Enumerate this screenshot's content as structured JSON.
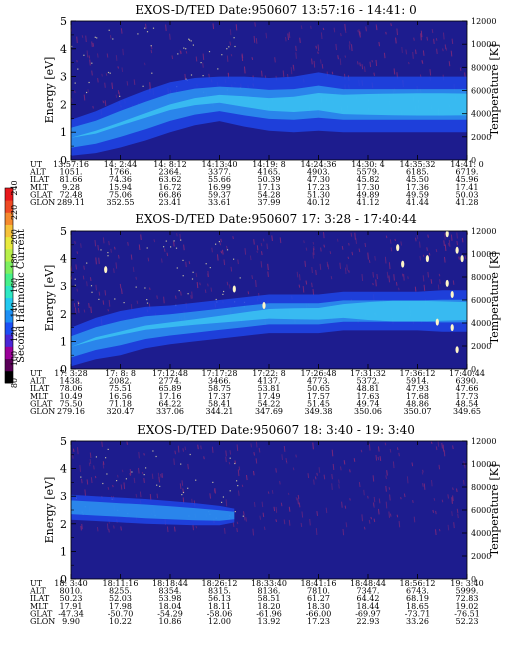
{
  "figure": {
    "colorbar": {
      "label": "Second Harmonic Current",
      "ticks": [
        "80",
        "100",
        "120",
        "140",
        "160",
        "180",
        "200",
        "220",
        "240"
      ],
      "colors": [
        "#000000",
        "#5a0058",
        "#9a0098",
        "#4a26d6",
        "#1c4ff5",
        "#1d8ff5",
        "#22c9f0",
        "#2ee8c4",
        "#46f08a",
        "#7ef060",
        "#b8f04a",
        "#e8ea3e",
        "#f6c23a",
        "#f58a2e",
        "#ef4a24",
        "#e8181c"
      ]
    },
    "colors": {
      "background": "#1d1c8e",
      "band_mid": "#1f45e8",
      "band_light": "#2f9ef0",
      "band_core": "#41d7f4",
      "noise": "#8b2a77",
      "speck": "#f3e8a8"
    }
  },
  "chart_data": [
    {
      "type": "heatmap",
      "title": "EXOS-D/TED   Date:950607  13:57:16 - 14:41: 0",
      "ylabel": "Energy [eV]",
      "y2label": "Temperature [K]",
      "ylim": [
        0,
        5
      ],
      "y2lim": [
        0,
        12000
      ],
      "yticks": [
        "0",
        "1",
        "2",
        "3",
        "4",
        "5"
      ],
      "y2ticks": [
        "0",
        "2000",
        "4000",
        "6000",
        "8000",
        "10000",
        "12000"
      ],
      "ephemeris_labels": [
        "UT",
        "ALT",
        "ILAT",
        "MLT",
        "GLAT",
        "GLON"
      ],
      "ephemeris": [
        [
          "13:57:16",
          "1051.",
          "81.66",
          "9.28",
          "72.48",
          "289.11"
        ],
        [
          "14: 2:44",
          "1766.",
          "74.36",
          "15.94",
          "75.06",
          "352.55"
        ],
        [
          "14: 8:12",
          "2364.",
          "63.62",
          "16.72",
          "66.86",
          "23.41"
        ],
        [
          "14:13:40",
          "3377.",
          "55.66",
          "16.99",
          "59.37",
          "33.61"
        ],
        [
          "14:19: 8",
          "4165.",
          "50.39",
          "17.13",
          "54.28",
          "37.99"
        ],
        [
          "14:24:36",
          "4903.",
          "47.30",
          "17.23",
          "51.30",
          "40.12"
        ],
        [
          "14:30: 4",
          "5579.",
          "45.82",
          "17.30",
          "49.89",
          "41.12"
        ],
        [
          "14:35:32",
          "6185.",
          "45.50",
          "17.36",
          "49.59",
          "41.44"
        ],
        [
          "14:41: 0",
          "6719.",
          "45.96",
          "17.41",
          "50.03",
          "41.28"
        ]
      ],
      "band": [
        [
          0,
          0.8,
          1.3,
          0.0
        ],
        [
          0.5,
          1.0,
          1.5,
          0.1
        ],
        [
          1.0,
          1.3,
          1.7,
          0.12
        ],
        [
          1.5,
          1.6,
          1.8,
          0.16
        ],
        [
          2.0,
          1.9,
          1.8,
          0.2
        ],
        [
          2.5,
          2.1,
          1.7,
          0.25
        ],
        [
          3.0,
          2.2,
          1.6,
          0.28
        ],
        [
          3.5,
          2.1,
          1.8,
          0.38
        ],
        [
          4.0,
          2.0,
          1.9,
          0.45
        ],
        [
          4.5,
          2.0,
          2.0,
          0.55
        ],
        [
          5.0,
          2.1,
          2.1,
          0.62
        ],
        [
          5.5,
          2.0,
          2.0,
          0.7
        ],
        [
          6.0,
          2.0,
          2.0,
          0.75
        ],
        [
          6.5,
          2.0,
          2.0,
          0.78
        ],
        [
          7.0,
          2.0,
          2.0,
          0.8
        ],
        [
          7.5,
          2.0,
          2.0,
          0.8
        ],
        [
          8.0,
          2.0,
          2.0,
          0.78
        ]
      ]
    },
    {
      "type": "heatmap",
      "title": "EXOS-D/TED   Date:950607  17: 3:28 - 17:40:44",
      "ylabel": "Energy [eV]",
      "y2label": "Temperature [K]",
      "ylim": [
        0,
        5
      ],
      "y2lim": [
        0,
        12000
      ],
      "yticks": [
        "0",
        "1",
        "2",
        "3",
        "4",
        "5"
      ],
      "y2ticks": [
        "0",
        "2000",
        "4000",
        "6000",
        "8000",
        "10000",
        "12000"
      ],
      "ephemeris_labels": [
        "UT",
        "ALT",
        "ILAT",
        "MLT",
        "GLAT",
        "GLON"
      ],
      "ephemeris": [
        [
          "17: 3:28",
          "1438.",
          "78.06",
          "10.49",
          "75.50",
          "279.16"
        ],
        [
          "17: 8: 8",
          "2082.",
          "75.51",
          "16.56",
          "71.18",
          "320.47"
        ],
        [
          "17:12:48",
          "2774.",
          "65.89",
          "17.16",
          "64.22",
          "337.06"
        ],
        [
          "17:17:28",
          "3466.",
          "58.75",
          "17.37",
          "58.41",
          "344.21"
        ],
        [
          "17:22: 8",
          "4137.",
          "53.81",
          "17.49",
          "54.22",
          "347.69"
        ],
        [
          "17:26:48",
          "4773.",
          "50.65",
          "17.57",
          "51.45",
          "349.38"
        ],
        [
          "17:31:32",
          "5372.",
          "48.81",
          "17.63",
          "49.74",
          "350.06"
        ],
        [
          "17:36:12",
          "5914.",
          "47.93",
          "17.68",
          "48.86",
          "350.07"
        ],
        [
          "17:40:44",
          "6390.",
          "47.66",
          "17.73",
          "48.54",
          "349.65"
        ]
      ],
      "band": [
        [
          0,
          0.8,
          1.4,
          0.0
        ],
        [
          0.5,
          1.1,
          1.5,
          0.1
        ],
        [
          1.0,
          1.3,
          1.6,
          0.12
        ],
        [
          1.5,
          1.5,
          1.5,
          0.15
        ],
        [
          2.0,
          1.6,
          1.4,
          0.18
        ],
        [
          2.5,
          1.7,
          1.4,
          0.2
        ],
        [
          3.0,
          1.8,
          1.4,
          0.25
        ],
        [
          3.5,
          1.9,
          1.4,
          0.3
        ],
        [
          4.0,
          2.0,
          1.4,
          0.35
        ],
        [
          4.5,
          2.0,
          1.4,
          0.4
        ],
        [
          5.0,
          2.0,
          1.4,
          0.42
        ],
        [
          5.5,
          2.1,
          1.4,
          0.5
        ],
        [
          6.0,
          2.1,
          1.4,
          0.65
        ],
        [
          6.5,
          2.1,
          1.4,
          0.75
        ],
        [
          7.0,
          2.1,
          1.4,
          0.75
        ],
        [
          7.5,
          2.1,
          1.5,
          0.7
        ],
        [
          8.0,
          2.1,
          1.5,
          0.65
        ]
      ],
      "specks": [
        [
          0.7,
          3.6
        ],
        [
          3.3,
          2.9
        ],
        [
          3.9,
          2.3
        ],
        [
          6.6,
          4.4
        ],
        [
          6.7,
          3.8
        ],
        [
          7.2,
          4.0
        ],
        [
          7.4,
          1.7
        ],
        [
          7.6,
          4.9
        ],
        [
          7.6,
          3.1
        ],
        [
          7.7,
          2.7
        ],
        [
          7.8,
          4.3
        ],
        [
          7.7,
          1.5
        ],
        [
          7.8,
          0.7
        ],
        [
          7.9,
          4.0
        ]
      ]
    },
    {
      "type": "heatmap",
      "title": "EXOS-D/TED   Date:950607  18: 3:40 - 19: 3:40",
      "ylabel": "Energy [eV]",
      "y2label": "Temperature [K]",
      "ylim": [
        0,
        5
      ],
      "y2lim": [
        0,
        12000
      ],
      "yticks": [
        "0",
        "1",
        "2",
        "3",
        "4",
        "5"
      ],
      "y2ticks": [
        "0",
        "2000",
        "4000",
        "6000",
        "8000",
        "10000",
        "12000"
      ],
      "ephemeris_labels": [
        "UT",
        "ALT",
        "ILAT",
        "MLT",
        "GLAT",
        "GLON"
      ],
      "ephemeris": [
        [
          "18: 3:40",
          "8010.",
          "50.23",
          "17.91",
          "-47.34",
          "9.90"
        ],
        [
          "18:11:16",
          "8255.",
          "52.03",
          "17.98",
          "-50.70",
          "10.22"
        ],
        [
          "18:18:44",
          "8354.",
          "53.98",
          "18.04",
          "-54.29",
          "10.86"
        ],
        [
          "18:26:12",
          "8315.",
          "56.13",
          "18.11",
          "-58.06",
          "12.00"
        ],
        [
          "18:33:40",
          "8136.",
          "58.51",
          "18.20",
          "-61.96",
          "13.92"
        ],
        [
          "18:41:16",
          "7810.",
          "61.27",
          "18.30",
          "-66.00",
          "17.23"
        ],
        [
          "18:48:44",
          "7347.",
          "64.42",
          "18.44",
          "-69.97",
          "22.93"
        ],
        [
          "18:56:12",
          "6743.",
          "68.19",
          "18.65",
          "-73.71",
          "33.26"
        ],
        [
          "19: 3:40",
          "5999.",
          "72.83",
          "19.02",
          "-76.51",
          "52.23"
        ]
      ],
      "band": [
        [
          0,
          2.6,
          0.9,
          0.25
        ],
        [
          0.5,
          2.55,
          0.9,
          0.3
        ],
        [
          1.0,
          2.5,
          0.9,
          0.3
        ],
        [
          1.5,
          2.45,
          0.9,
          0.28
        ],
        [
          2.0,
          2.4,
          0.85,
          0.25
        ],
        [
          2.5,
          2.35,
          0.8,
          0.22
        ],
        [
          3.0,
          2.3,
          0.7,
          0.18
        ],
        [
          3.3,
          2.3,
          0.5,
          0.1
        ]
      ]
    }
  ]
}
